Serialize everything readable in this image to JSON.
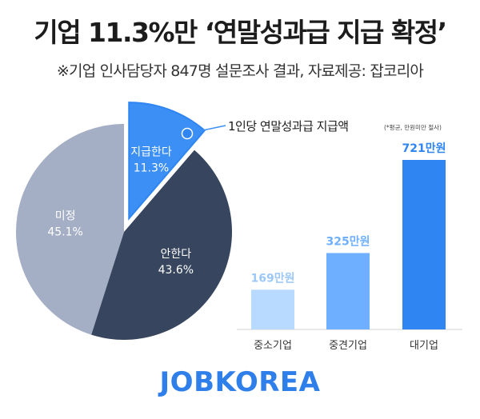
{
  "title": "기업 11.3%만 ‘연말성과급 지급 확정’",
  "subtitle": "※기업 인사담당자 847명 설문조사 결과, 자료제공: 잡코리아",
  "brand": "JOBKOREA",
  "colors": {
    "pie_pay": "#3b8ff5",
    "pie_nopay": "#37465e",
    "pie_undecided": "#a4aec4",
    "bar_small": "#b9daff",
    "bar_mid": "#6eb0ff",
    "bar_large": "#2f85f2",
    "accent_label": "#3b8ff5",
    "brand": "#2f7fea"
  },
  "chart_data": [
    {
      "type": "pie",
      "categories": [
        "지급한다",
        "안한다",
        "미정"
      ],
      "values": [
        11.3,
        43.6,
        45.1
      ],
      "value_labels": [
        "11.3%",
        "43.6%",
        "45.1%"
      ],
      "exploded": "지급한다"
    },
    {
      "type": "bar",
      "title": "1인당 연말성과급 지급액",
      "note": "(*평균, 만원미만 절사)",
      "categories": [
        "중소기업",
        "중견기업",
        "대기업"
      ],
      "values": [
        169,
        325,
        721
      ],
      "value_labels": [
        "169만원",
        "325만원",
        "721만원"
      ],
      "unit": "만원"
    }
  ]
}
